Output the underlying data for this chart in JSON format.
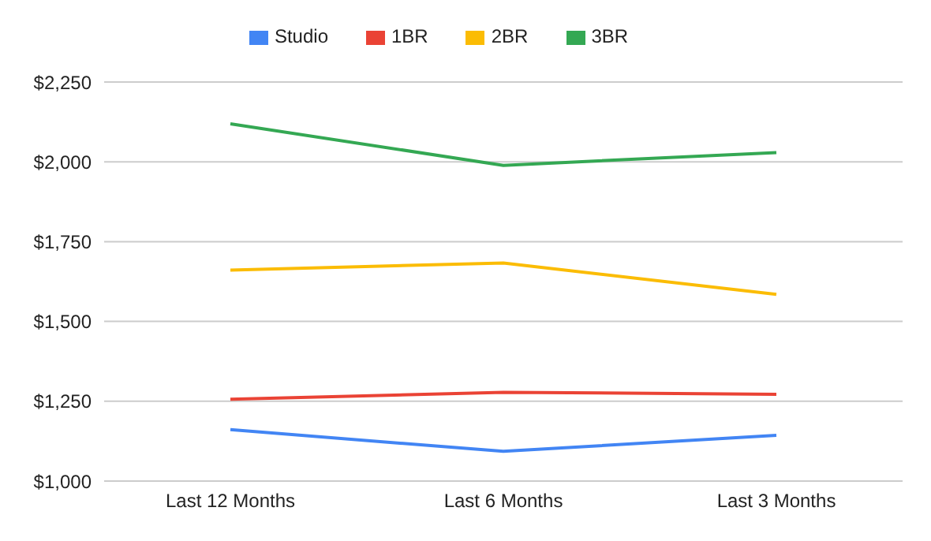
{
  "chart_data": {
    "type": "line",
    "categories": [
      "Last 12 Months",
      "Last 6 Months",
      "Last 3 Months"
    ],
    "series": [
      {
        "name": "Studio",
        "color": "#4285f4",
        "values": [
          1161,
          1093,
          1143
        ]
      },
      {
        "name": "1BR",
        "color": "#ea4335",
        "values": [
          1256,
          1278,
          1272
        ]
      },
      {
        "name": "2BR",
        "color": "#fbbc04",
        "values": [
          1661,
          1683,
          1585
        ]
      },
      {
        "name": "3BR",
        "color": "#34a853",
        "values": [
          2119,
          1989,
          2029
        ]
      }
    ],
    "ylim": [
      1000,
      2250
    ],
    "yticks": [
      {
        "value": 1000,
        "label": "$1,000"
      },
      {
        "value": 1250,
        "label": "$1,250"
      },
      {
        "value": 1500,
        "label": "$1,500"
      },
      {
        "value": 1750,
        "label": "$1,750"
      },
      {
        "value": 2000,
        "label": "$2,000"
      },
      {
        "value": 2250,
        "label": "$2,250"
      }
    ],
    "grid": "y",
    "legend": "top",
    "marker": "none",
    "line_style": "solid"
  }
}
